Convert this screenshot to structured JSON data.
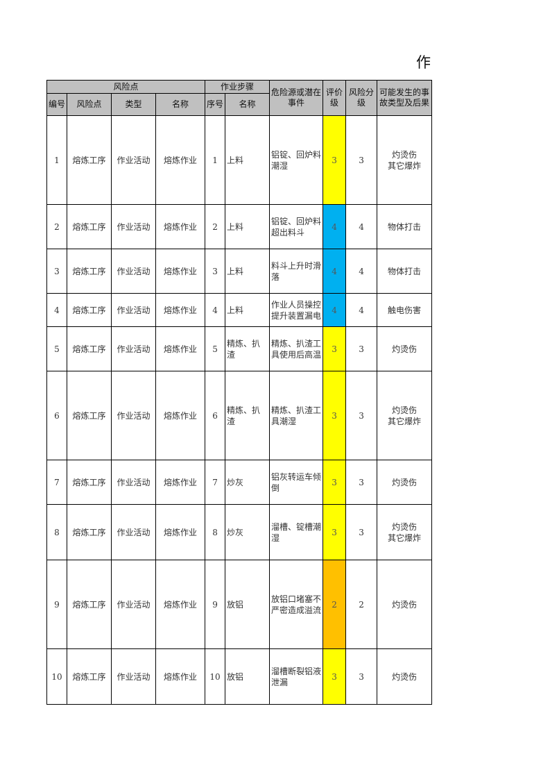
{
  "title": "作",
  "header": {
    "group_risk": "风险点",
    "group_step": "作业步骤",
    "hazard": "危险源或潜在事件",
    "eval": "评价级",
    "level": "风险分级",
    "consequence": "可能发生的事故类型及后果",
    "no": "编号",
    "risk_point": "风险点",
    "type": "类型",
    "name": "名称",
    "seq": "序号",
    "step_name": "名称"
  },
  "colors": {
    "3": "#ffff00",
    "4": "#00b0f0",
    "2": "#ffc000",
    "header": "#c0c0c0"
  },
  "rows": [
    {
      "no": "1",
      "risk_point": "熔炼工序",
      "type": "作业活动",
      "name": "熔炼作业",
      "seq": "1",
      "step": "上料",
      "hazard": "铝锭、回炉料潮湿",
      "eval": "3",
      "level": "3",
      "consequence": "灼烫伤\n其它爆炸"
    },
    {
      "no": "2",
      "risk_point": "熔炼工序",
      "type": "作业活动",
      "name": "熔炼作业",
      "seq": "2",
      "step": "上料",
      "hazard": "铝锭、回炉料超出料斗",
      "eval": "4",
      "level": "4",
      "consequence": "物体打击"
    },
    {
      "no": "3",
      "risk_point": "熔炼工序",
      "type": "作业活动",
      "name": "熔炼作业",
      "seq": "3",
      "step": "上料",
      "hazard": "料斗上升时滑落",
      "eval": "4",
      "level": "4",
      "consequence": "物体打击"
    },
    {
      "no": "4",
      "risk_point": "熔炼工序",
      "type": "作业活动",
      "name": "熔炼作业",
      "seq": "4",
      "step": "上料",
      "hazard": "作业人员操控提升装置漏电",
      "eval": "4",
      "level": "4",
      "consequence": "触电伤害"
    },
    {
      "no": "5",
      "risk_point": "熔炼工序",
      "type": "作业活动",
      "name": "熔炼作业",
      "seq": "5",
      "step": "精炼、扒渣",
      "hazard": "精炼、扒渣工具使用后高温",
      "eval": "3",
      "level": "3",
      "consequence": "灼烫伤"
    },
    {
      "no": "6",
      "risk_point": "熔炼工序",
      "type": "作业活动",
      "name": "熔炼作业",
      "seq": "6",
      "step": "精炼、扒渣",
      "hazard": "精炼、扒渣工具潮湿",
      "eval": "3",
      "level": "3",
      "consequence": "灼烫伤\n其它爆炸"
    },
    {
      "no": "7",
      "risk_point": "熔炼工序",
      "type": "作业活动",
      "name": "熔炼作业",
      "seq": "7",
      "step": "炒灰",
      "hazard": "铝灰转运车倾倒",
      "eval": "3",
      "level": "3",
      "consequence": "灼烫伤"
    },
    {
      "no": "8",
      "risk_point": "熔炼工序",
      "type": "作业活动",
      "name": "熔炼作业",
      "seq": "8",
      "step": "炒灰",
      "hazard": "溜槽、锭槽潮湿",
      "eval": "3",
      "level": "3",
      "consequence": "灼烫伤\n其它爆炸"
    },
    {
      "no": "9",
      "risk_point": "熔炼工序",
      "type": "作业活动",
      "name": "熔炼作业",
      "seq": "9",
      "step": "放铝",
      "hazard": "放铝口堵塞不严密造成溢流",
      "eval": "2",
      "level": "2",
      "consequence": "灼烫伤"
    },
    {
      "no": "10",
      "risk_point": "熔炼工序",
      "type": "作业活动",
      "name": "熔炼作业",
      "seq": "10",
      "step": "放铝",
      "hazard": "溜槽断裂铝液泄漏",
      "eval": "3",
      "level": "3",
      "consequence": "灼烫伤"
    }
  ]
}
